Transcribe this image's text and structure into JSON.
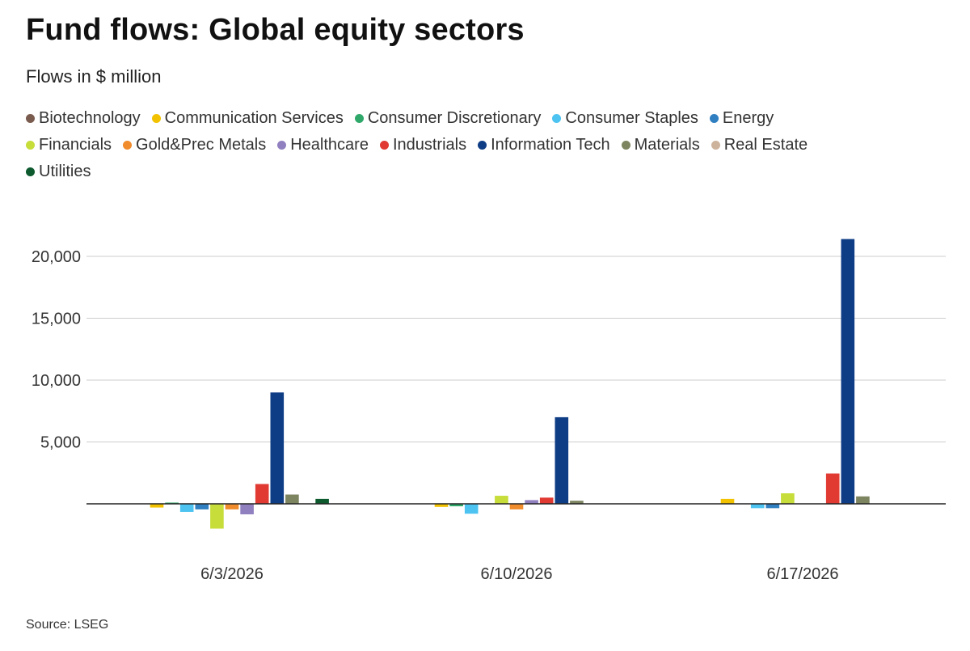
{
  "title": "Fund flows: Global equity sectors",
  "subtitle": "Flows in $ million",
  "source": "Source: LSEG",
  "chart_data": {
    "type": "bar",
    "categories": [
      "6/3/2026",
      "6/10/2026",
      "6/17/2026"
    ],
    "ylim": [
      -3000,
      22500
    ],
    "yticks": [
      5000,
      10000,
      15000,
      20000
    ],
    "ytick_labels": [
      "5,000",
      "10,000",
      "15,000",
      "20,000"
    ],
    "grid": true,
    "legend_position": "top",
    "series": [
      {
        "name": "Biotechnology",
        "color": "#7a5c4f",
        "values": [
          0,
          0,
          0
        ]
      },
      {
        "name": "Communication Services",
        "color": "#f2c200",
        "values": [
          -300,
          -250,
          400
        ]
      },
      {
        "name": "Consumer Discretionary",
        "color": "#2fa86a",
        "values": [
          100,
          -200,
          0
        ]
      },
      {
        "name": "Consumer Staples",
        "color": "#4cc3f0",
        "values": [
          -650,
          -800,
          -350
        ]
      },
      {
        "name": "Energy",
        "color": "#2f7fc1",
        "values": [
          -450,
          0,
          -350
        ]
      },
      {
        "name": "Financials",
        "color": "#c6dd3a",
        "values": [
          -2000,
          650,
          850
        ]
      },
      {
        "name": "Gold&Prec Metals",
        "color": "#f08c2c",
        "values": [
          -450,
          -450,
          0
        ]
      },
      {
        "name": "Healthcare",
        "color": "#9180c0",
        "values": [
          -850,
          300,
          0
        ]
      },
      {
        "name": "Industrials",
        "color": "#e03a33",
        "values": [
          1600,
          500,
          2450
        ]
      },
      {
        "name": "Information Tech",
        "color": "#0f3d85",
        "values": [
          9000,
          7000,
          21400
        ]
      },
      {
        "name": "Materials",
        "color": "#7d8460",
        "values": [
          750,
          250,
          600
        ]
      },
      {
        "name": "Real Estate",
        "color": "#cdb39c",
        "values": [
          0,
          0,
          0
        ]
      },
      {
        "name": "Utilities",
        "color": "#0d5a2e",
        "values": [
          400,
          0,
          0
        ]
      }
    ]
  },
  "legend_rows": [
    [
      0,
      1,
      2,
      3,
      4
    ],
    [
      5,
      6,
      7,
      8,
      9,
      10,
      11
    ],
    [
      12
    ]
  ]
}
